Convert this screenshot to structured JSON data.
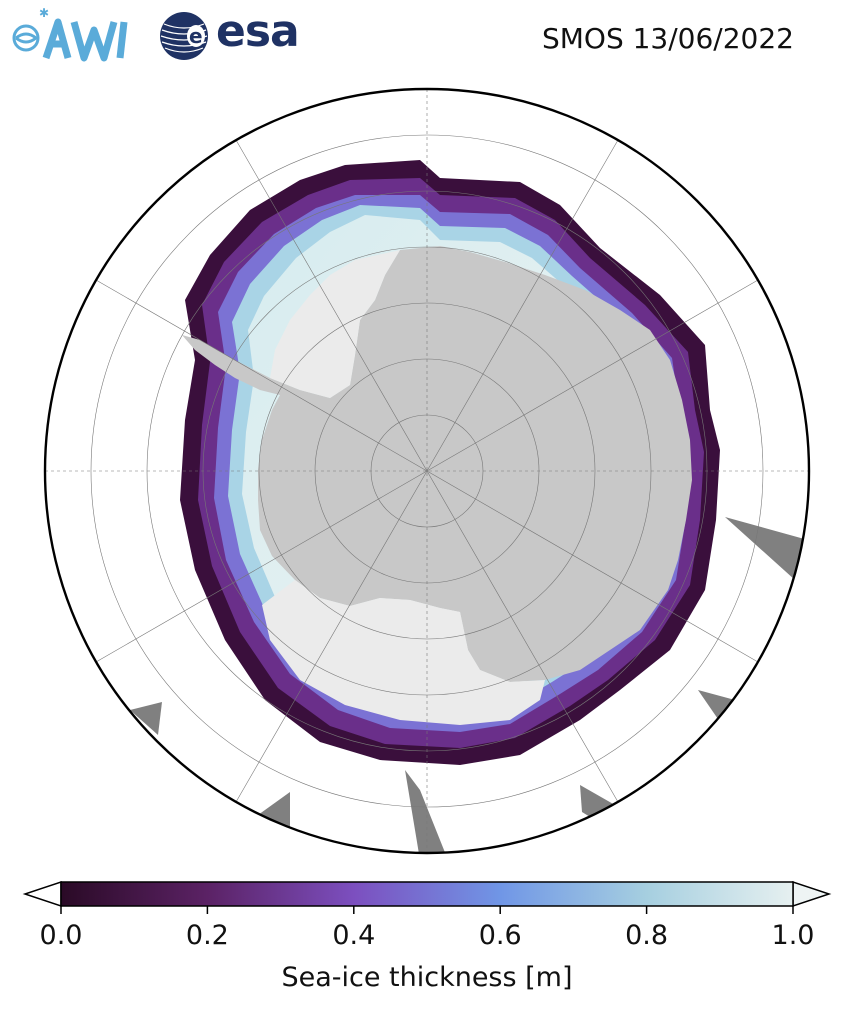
{
  "header": {
    "awi_logo_text": "AWI",
    "esa_logo_text": "esa",
    "title": "SMOS 13/06/2022"
  },
  "map": {
    "projection": "south polar stereographic",
    "land_color": "#c8c8c8",
    "ice_shelf_color": "#ebebeb",
    "missing_data_color": "#808080",
    "ocean_color": "#ffffff"
  },
  "colorbar": {
    "label": "Sea-ice thickness [m]",
    "min": 0.0,
    "max": 1.0,
    "ticks": [
      "0.0",
      "0.2",
      "0.4",
      "0.6",
      "0.8",
      "1.0"
    ],
    "colors": [
      "#2a0a26",
      "#5b2265",
      "#7c4fbf",
      "#7096e6",
      "#a6cfe0",
      "#e6f0f0"
    ]
  }
}
